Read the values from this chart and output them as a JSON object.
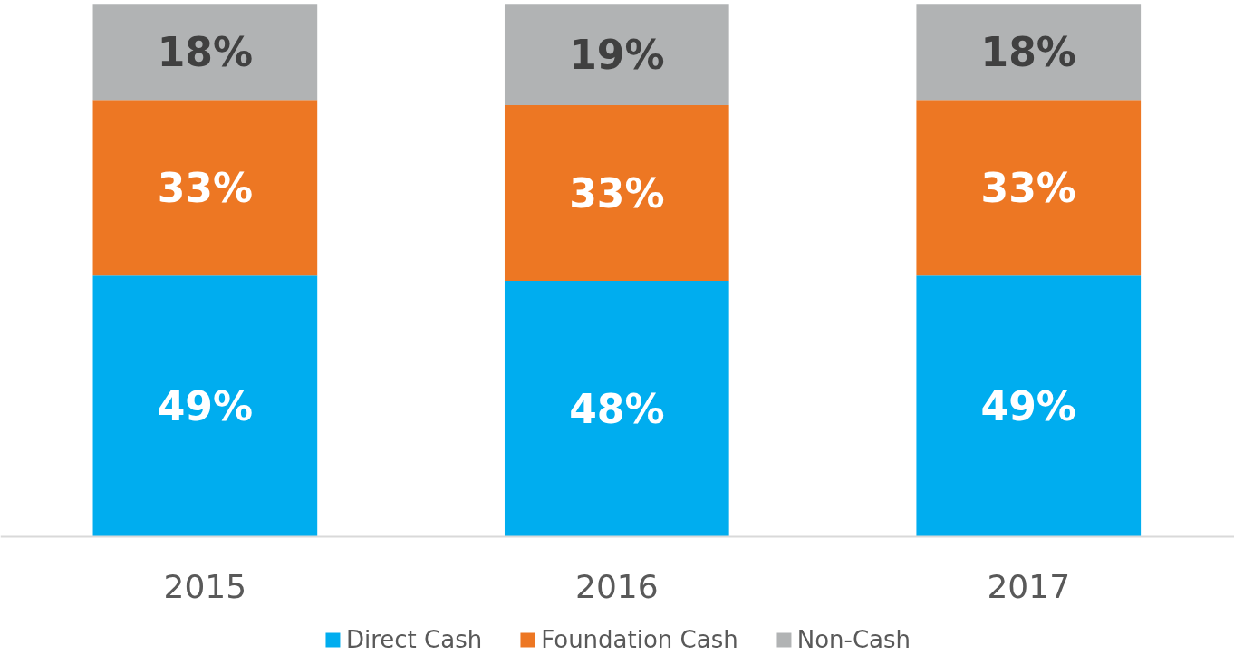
{
  "chart_data": {
    "type": "bar",
    "stacked": true,
    "categories": [
      "2015",
      "2016",
      "2017"
    ],
    "series": [
      {
        "name": "Direct Cash",
        "color": "#00adef",
        "values": [
          49,
          48,
          49
        ],
        "value_labels": [
          "49%",
          "48%",
          "49%"
        ]
      },
      {
        "name": "Foundation Cash",
        "color": "#ed7723",
        "values": [
          33,
          33,
          33
        ],
        "value_labels": [
          "33%",
          "33%",
          "33%"
        ]
      },
      {
        "name": "Non-Cash",
        "color": "#b1b3b4",
        "values": [
          18,
          19,
          18
        ],
        "value_labels": [
          "18%",
          "19%",
          "18%"
        ]
      }
    ],
    "legend": "bottom",
    "grid": false,
    "tick_labels": "x"
  }
}
